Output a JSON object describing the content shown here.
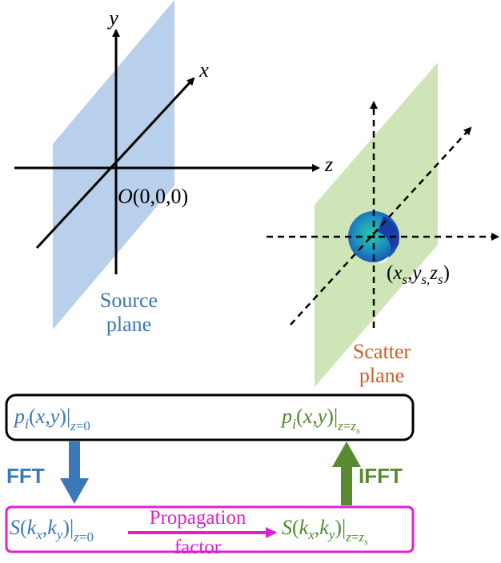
{
  "colors": {
    "source_plane_fill": "#b8d0ec",
    "scatter_plane_fill": "#cfe5b8",
    "source_text": "#3a78b8",
    "scatter_text": "#c8602a",
    "green_text": "#4e8a2a",
    "fft_arrow": "#3a78b8",
    "ifft_arrow": "#5a8a30",
    "magenta": "#e020d0",
    "scatterer_outer": "#1a5ab0",
    "scatterer_inner": "#18a8b0"
  },
  "axes": {
    "y_label": "y",
    "x_label": "x",
    "z_label": "z",
    "origin_label": "O(0,0,0)",
    "scatter_point_label": "(x_s, y_s, z_s)"
  },
  "planes": {
    "source_label_line1": "Source",
    "source_label_line2": "plane",
    "scatter_label_line1": "Scatter",
    "scatter_label_line2": "plane"
  },
  "flow": {
    "top_left": "p_i(x,y)|z=0",
    "top_right": "p_i(x,y)|z=z_s",
    "fft_label": "FFT",
    "ifft_label": "IFFT",
    "bottom_left": "S(k_x,k_y)|z=0",
    "bottom_right": "S(k_x,k_y)|z=z_s",
    "propagation_line1": "Propagation",
    "propagation_line2": "factor"
  },
  "icons": {
    "scatterer": "spherical-scatterer-icon"
  }
}
